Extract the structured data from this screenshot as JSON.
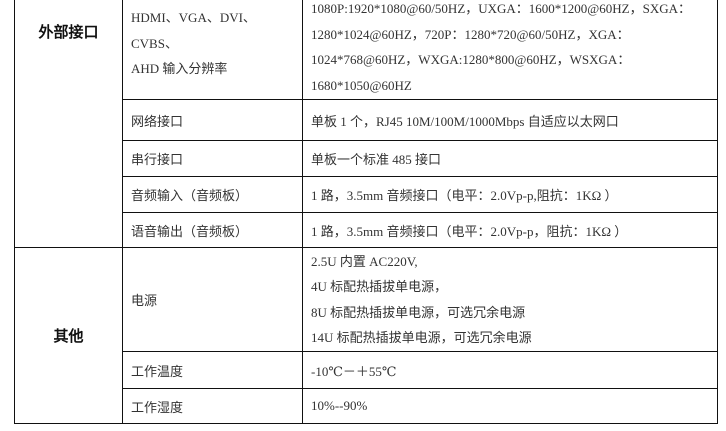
{
  "groups": [
    {
      "category": "外部接口",
      "rows": [
        {
          "name": "HDMI、VGA、DVI、CVBS、AHD 输入分辨率",
          "name_lines": [
            "HDMI、VGA、DVI、CVBS、",
            "AHD 输入分辨率"
          ],
          "value_lines": [
            "1080P:1920*1080@60/50HZ，UXGA：1600*1200@60HZ，SXGA：",
            "1280*1024@60HZ，720P：1280*720@60/50HZ，XGA：",
            "1024*768@60HZ，WXGA:1280*800@60HZ，WSXGA：",
            "1680*1050@60HZ"
          ]
        },
        {
          "name": "网络接口",
          "value": "单板 1 个，RJ45  10M/100M/1000Mbps 自适应以太网口"
        },
        {
          "name": "串行接口",
          "value": "单板一个标准 485 接口"
        },
        {
          "name": "音频输入（音频板）",
          "value": "1 路，3.5mm 音频接口（电平：2.0Vp-p,阻抗：1KΩ ）"
        },
        {
          "name": "语音输出（音频板）",
          "value": "1 路，3.5mm 音频接口（电平：2.0Vp-p，阻抗：1KΩ ）"
        }
      ]
    },
    {
      "category": "其他",
      "rows": [
        {
          "name": "电源",
          "value_lines": [
            "2.5U 内置  AC220V,",
            "4U 标配热插拔单电源，",
            "8U 标配热插拔单电源，可选冗余电源",
            "14U 标配热插拔单电源，可选冗余电源"
          ]
        },
        {
          "name": "工作温度",
          "value": "-10℃－＋55℃"
        },
        {
          "name": "工作湿度",
          "value": "10%--90%"
        }
      ]
    }
  ]
}
